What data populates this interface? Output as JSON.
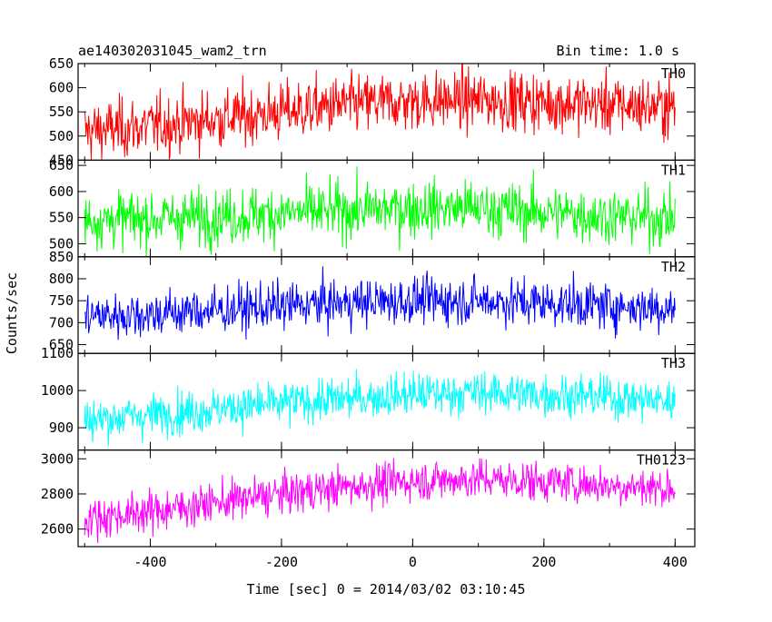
{
  "chart_data": {
    "type": "line",
    "title": "ae140302031045_wam2_trn",
    "subtitle": "Bin time: 1.0 s",
    "xlabel": "Time [sec] 0 = 2014/03/02 03:10:45",
    "ylabel": "Counts/sec",
    "xlim": [
      -510,
      430
    ],
    "xticks": [
      -400,
      -200,
      0,
      200,
      400
    ],
    "x_range": [
      -500,
      400
    ],
    "grid": false,
    "panels": [
      {
        "name": "TH0",
        "color": "#ff0000",
        "ylim": [
          450,
          650
        ],
        "yticks": [
          450,
          500,
          550,
          600,
          650
        ],
        "trend": [
          [
            -500,
            510
          ],
          [
            -400,
            520
          ],
          [
            -300,
            535
          ],
          [
            -200,
            550
          ],
          [
            -100,
            565
          ],
          [
            0,
            572
          ],
          [
            100,
            575
          ],
          [
            200,
            570
          ],
          [
            300,
            565
          ],
          [
            400,
            560
          ]
        ],
        "spread": 48
      },
      {
        "name": "TH1",
        "color": "#00ff00",
        "ylim": [
          475,
          660
        ],
        "yticks": [
          500,
          550,
          600,
          650
        ],
        "trend": [
          [
            -500,
            545
          ],
          [
            -400,
            548
          ],
          [
            -300,
            552
          ],
          [
            -200,
            558
          ],
          [
            -100,
            563
          ],
          [
            0,
            568
          ],
          [
            100,
            568
          ],
          [
            200,
            560
          ],
          [
            300,
            553
          ],
          [
            400,
            548
          ]
        ],
        "spread": 42
      },
      {
        "name": "TH2",
        "color": "#0000ff",
        "ylim": [
          630,
          850
        ],
        "yticks": [
          650,
          700,
          750,
          800,
          850
        ],
        "trend": [
          [
            -500,
            715
          ],
          [
            -400,
            720
          ],
          [
            -300,
            728
          ],
          [
            -200,
            738
          ],
          [
            -100,
            745
          ],
          [
            0,
            750
          ],
          [
            100,
            750
          ],
          [
            200,
            745
          ],
          [
            300,
            738
          ],
          [
            400,
            733
          ]
        ],
        "spread": 42
      },
      {
        "name": "TH3",
        "color": "#00ffff",
        "ylim": [
          840,
          1100
        ],
        "yticks": [
          900,
          1000,
          1100
        ],
        "trend": [
          [
            -500,
            920
          ],
          [
            -400,
            935
          ],
          [
            -300,
            950
          ],
          [
            -200,
            965
          ],
          [
            -100,
            978
          ],
          [
            0,
            990
          ],
          [
            100,
            995
          ],
          [
            200,
            990
          ],
          [
            300,
            982
          ],
          [
            400,
            970
          ]
        ],
        "spread": 45
      },
      {
        "name": "TH0123",
        "color": "#ff00ff",
        "ylim": [
          2500,
          3050
        ],
        "yticks": [
          2600,
          2800,
          3000
        ],
        "trend": [
          [
            -500,
            2660
          ],
          [
            -400,
            2700
          ],
          [
            -300,
            2750
          ],
          [
            -200,
            2800
          ],
          [
            -100,
            2840
          ],
          [
            0,
            2875
          ],
          [
            100,
            2885
          ],
          [
            200,
            2870
          ],
          [
            300,
            2850
          ],
          [
            400,
            2830
          ]
        ],
        "spread": 90
      }
    ]
  }
}
